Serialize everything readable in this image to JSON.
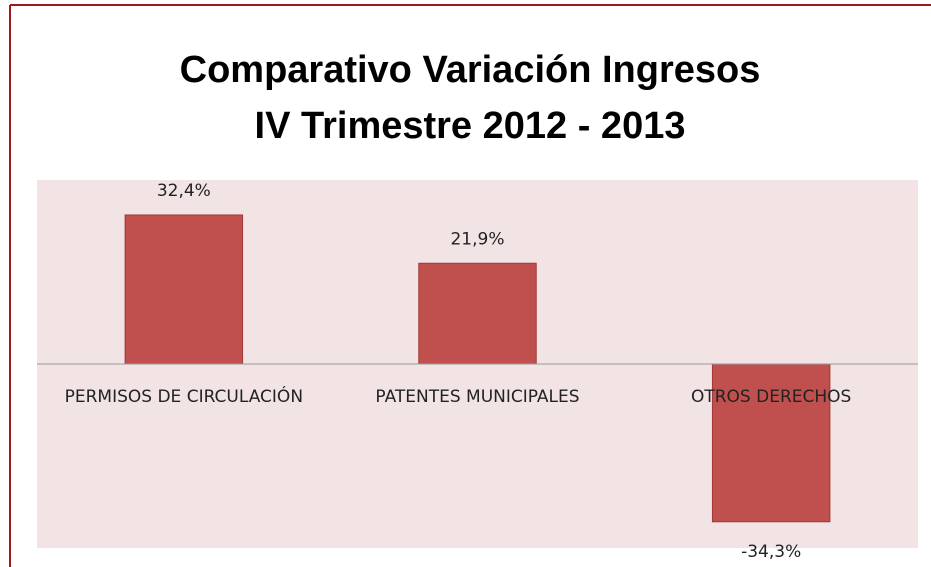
{
  "chart_data": {
    "type": "bar",
    "title": "Comparativo Variación Ingresos",
    "subtitle": "IV Trimestre 2012 - 2013",
    "categories": [
      "PERMISOS DE CIRCULACIÓN",
      "PATENTES MUNICIPALES",
      "OTROS DERECHOS"
    ],
    "values": [
      32.4,
      21.9,
      -34.3
    ],
    "value_labels": [
      "32,4%",
      "21,9%",
      "-34,3%"
    ],
    "color": "#c0504d",
    "ylim": [
      -40,
      40
    ]
  }
}
